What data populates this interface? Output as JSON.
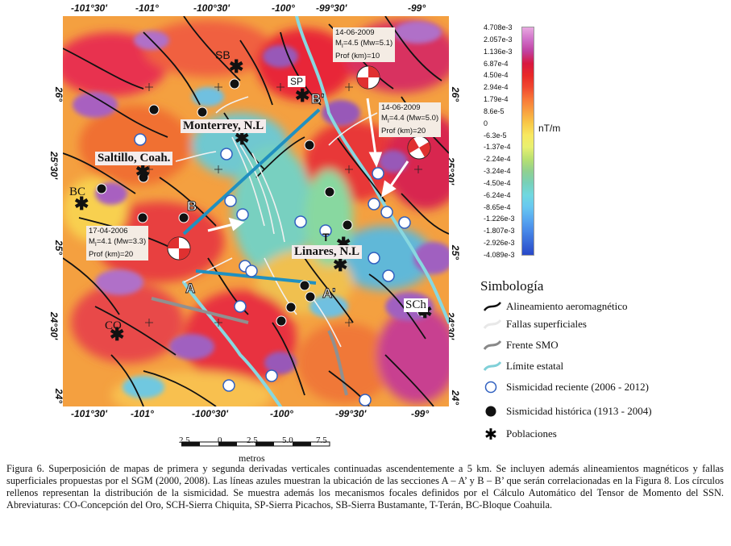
{
  "axes": {
    "top_lon": [
      "-101°30'",
      "-101°",
      "-100°30'",
      "-100°",
      "-99°30'",
      "-99°"
    ],
    "bottom_lon": [
      "-101°30'",
      "-101°",
      "-100°30'",
      "-100°",
      "-99°30'",
      "-99°"
    ],
    "left_lat": [
      "26°",
      "25°30'",
      "25°",
      "24°30'",
      "24°"
    ],
    "right_lat": [
      "26°",
      "25°30'",
      "25°",
      "24°30'",
      "24°"
    ]
  },
  "colorbar": {
    "unit": "nT/m",
    "ticks": [
      "4.708e-3",
      "2.057e-3",
      "1.136e-3",
      "6.87e-4",
      "4.50e-4",
      "2.94e-4",
      "1.79e-4",
      "8.6e-5",
      "0",
      "-6.3e-5",
      "-1.37e-4",
      "-2.24e-4",
      "-3.24e-4",
      "-4.50e-4",
      "-6.24e-4",
      "-8.65e-4",
      "-1.226e-3",
      "-1.807e-3",
      "-2.926e-3",
      "-4.089e-3"
    ],
    "colors": [
      "#e8a8e0",
      "#d070c8",
      "#c040a0",
      "#d81840",
      "#e82828",
      "#f04830",
      "#f87838",
      "#f8a040",
      "#f8c848",
      "#f8e860",
      "#e8f070",
      "#b8e070",
      "#90d090",
      "#78d0b8",
      "#70d8e0",
      "#68c8f0",
      "#58a8f0",
      "#4888e8",
      "#3868d8",
      "#2848c8"
    ]
  },
  "places": {
    "sb": "SB",
    "sp": "SP",
    "monterrey": "Monterrey, N.L",
    "saltillo": "Saltillo, Coah.",
    "bc": "BC",
    "t": "T",
    "linares": "Linares, N.L",
    "sch": "SCh",
    "co": "CO",
    "a": "A",
    "a_prime": "A'",
    "b": "B",
    "b_prime": "B'"
  },
  "events": [
    {
      "date": "14-06-2009",
      "mag": "M",
      "mag_sub": "I",
      "mag_rest": "=4.5 (Mw=5.1)",
      "depth": "Prof (km)=10"
    },
    {
      "date": "14-06-2009",
      "mag": "M",
      "mag_sub": "I",
      "mag_rest": "=4.4 (Mw=5.0)",
      "depth": "Prof (km)=20"
    },
    {
      "date": "17-04-2006",
      "mag": "M",
      "mag_sub": "I",
      "mag_rest": "=4.1 (Mw=3.3)",
      "depth": "Prof (km)=20"
    }
  ],
  "legend": {
    "title": "Simbología",
    "items": [
      {
        "label": "Alineamiento aeromagnético",
        "icon": "black-curve-icon"
      },
      {
        "label": "Fallas superficiales",
        "icon": "white-curve-icon"
      },
      {
        "label": "Frente SMO",
        "icon": "gray-curve-icon"
      },
      {
        "label": "Límite estatal",
        "icon": "cyan-curve-icon"
      },
      {
        "label": "Sismicidad reciente (2006 - 2012)",
        "icon": "open-circle-icon"
      },
      {
        "label": "Sismicidad histórica (1913 - 2004)",
        "icon": "filled-circle-icon"
      },
      {
        "label": "Poblaciones",
        "icon": "asterisk-icon"
      }
    ]
  },
  "scale": {
    "ticks": [
      "2.5",
      "0",
      "2.5",
      "5.0",
      "7.5"
    ],
    "unit": "metros"
  },
  "caption": "Figura 6. Superposición de mapas de primera y segunda derivadas verticales continuadas ascendentemente a 5 km. Se incluyen además alineamientos magnéticos y fallas superficiales propuestas por el SGM (2000, 2008). Las líneas azules muestran la ubicación de las secciones A – A’ y B – B’ que serán correlacionadas en la Figura 8. Los círculos rellenos representan la distribución de la sismicidad. Se muestra además los mecanismos focales definidos por el Cálculo Automático del Tensor de Momento del SSN. Abreviaturas: CO-Concepción del Oro, SCH-Sierra Chiquita, SP-Sierra Picachos, SB-Sierra Bustamante, T-Terán, BC-Bloque Coahuila."
}
